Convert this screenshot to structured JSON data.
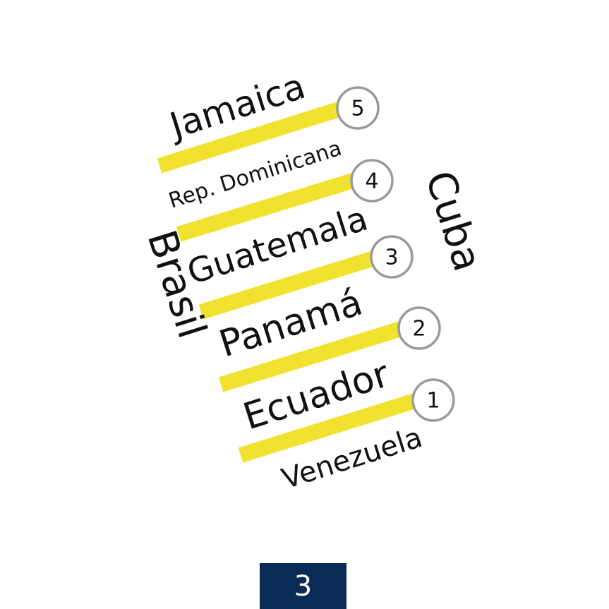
{
  "colors": {
    "bar": "#F0E22E",
    "badge_border": "#9A9A9A",
    "page_box": "#0B2B57"
  },
  "countries": {
    "jamaica": "Jamaica",
    "rep_dominicana": "Rep. Dominicana",
    "guatemala": "Guatemala",
    "panama": "Panamá",
    "ecuador": "Ecuador",
    "venezuela": "Venezuela",
    "cuba": "Cuba",
    "brasil": "Brasil"
  },
  "ranks": {
    "rank_5": "5",
    "rank_4": "4",
    "rank_3": "3",
    "rank_2": "2",
    "rank_1": "1"
  },
  "page_number": "3"
}
